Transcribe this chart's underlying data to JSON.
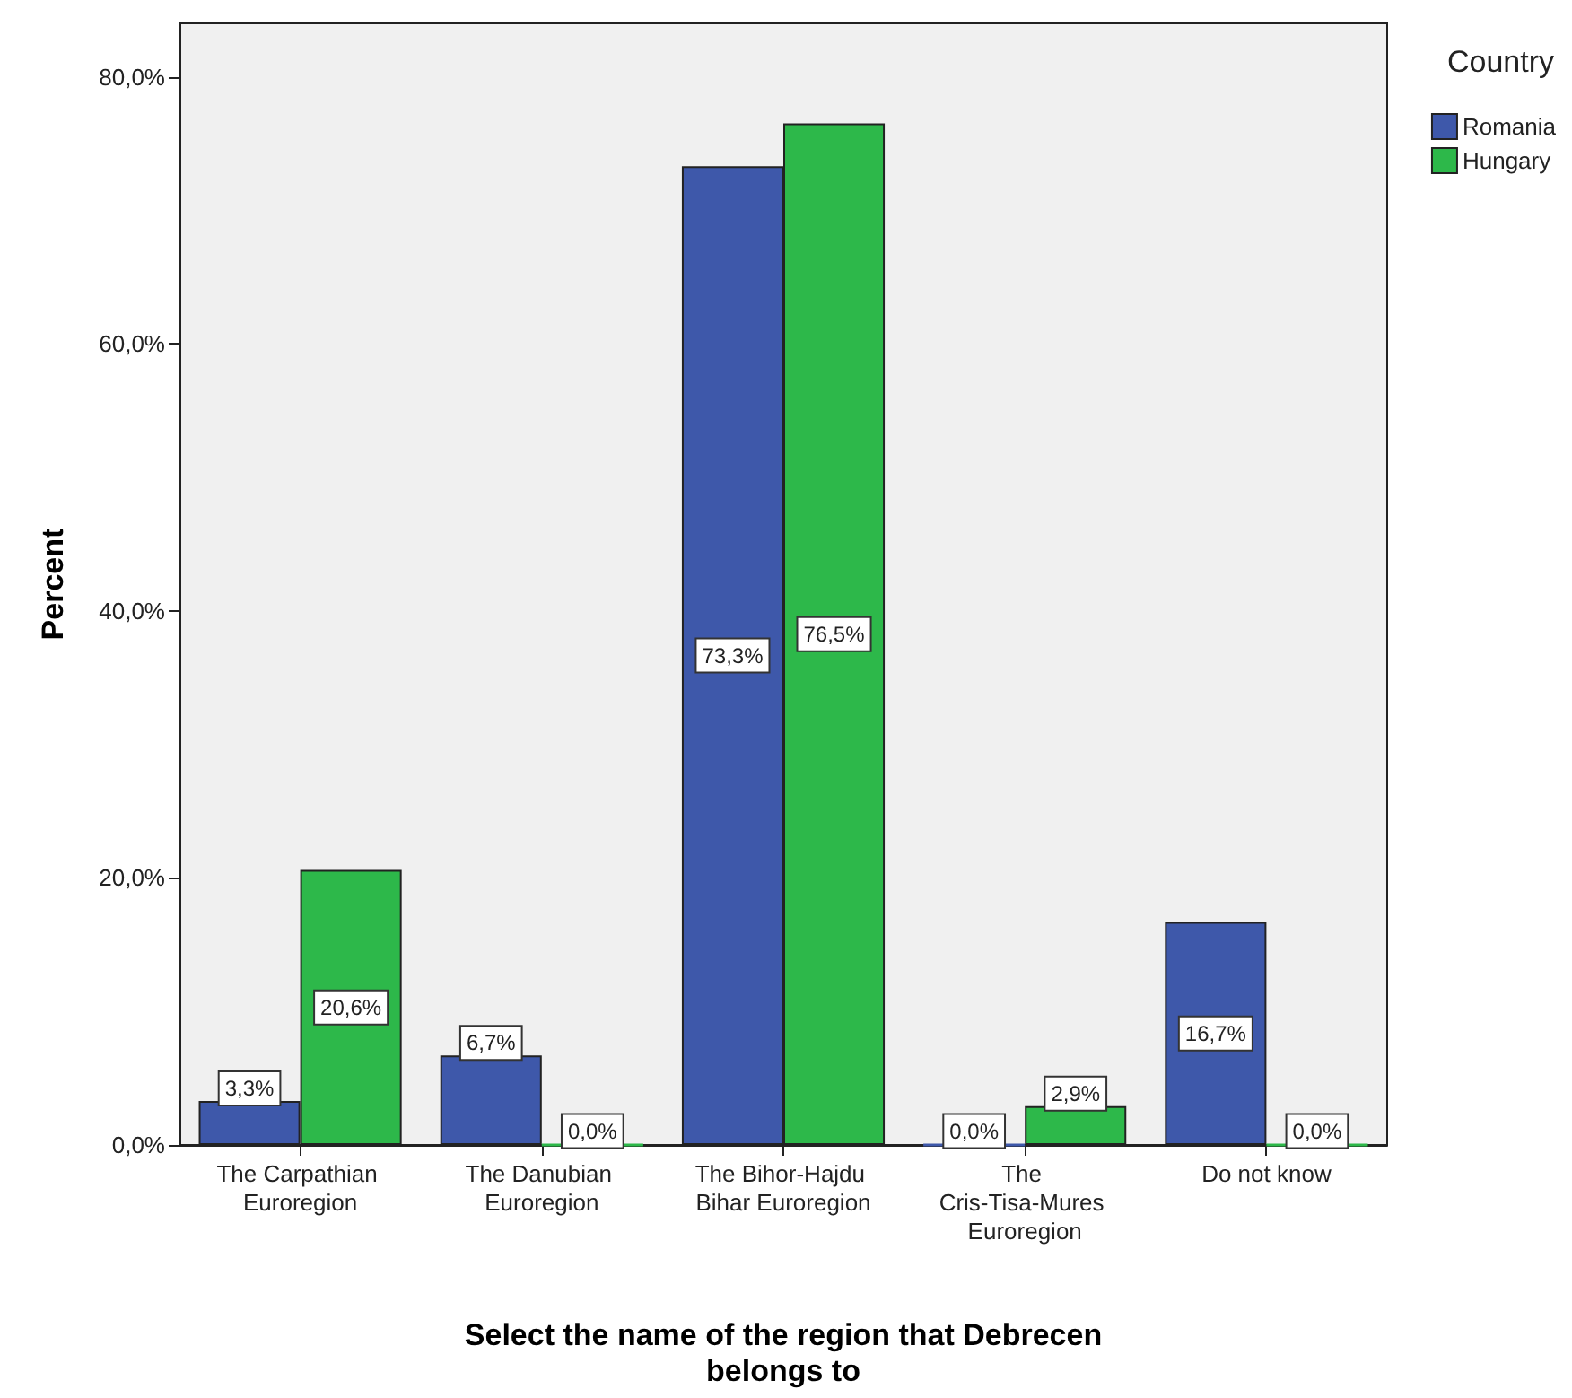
{
  "chart_data": {
    "type": "bar",
    "xlabel": "Select the name of the region that Debrecen belongs to",
    "ylabel": "Percent",
    "legend_title": "Country",
    "legend": "top right",
    "grid": false,
    "categories": [
      "The Carpathian Euroregion",
      "The Danubian Euroregion",
      "The Bihor-Hajdu Bihar Euroregion",
      "The Cris-Tisa-Mures Euroregion",
      "Do not know"
    ],
    "series": [
      {
        "name": "Romania",
        "color": "#3e58aa",
        "values": [
          3.3,
          6.7,
          73.3,
          0.0,
          16.7
        ],
        "value_labels": [
          "3,3%",
          "6,7%",
          "73,3%",
          "0,0%",
          "16,7%"
        ]
      },
      {
        "name": "Hungary",
        "color": "#2db84a",
        "values": [
          20.6,
          0.0,
          76.5,
          2.9,
          0.0
        ],
        "value_labels": [
          "20,6%",
          "0,0%",
          "76,5%",
          "2,9%",
          "0,0%"
        ]
      }
    ],
    "ylim": [
      0,
      84
    ],
    "yticks": [
      {
        "value": 0,
        "label": "0,0%"
      },
      {
        "value": 20,
        "label": "20,0%"
      },
      {
        "value": 40,
        "label": "40,0%"
      },
      {
        "value": 60,
        "label": "60,0%"
      },
      {
        "value": 80,
        "label": "80,0%"
      }
    ]
  }
}
